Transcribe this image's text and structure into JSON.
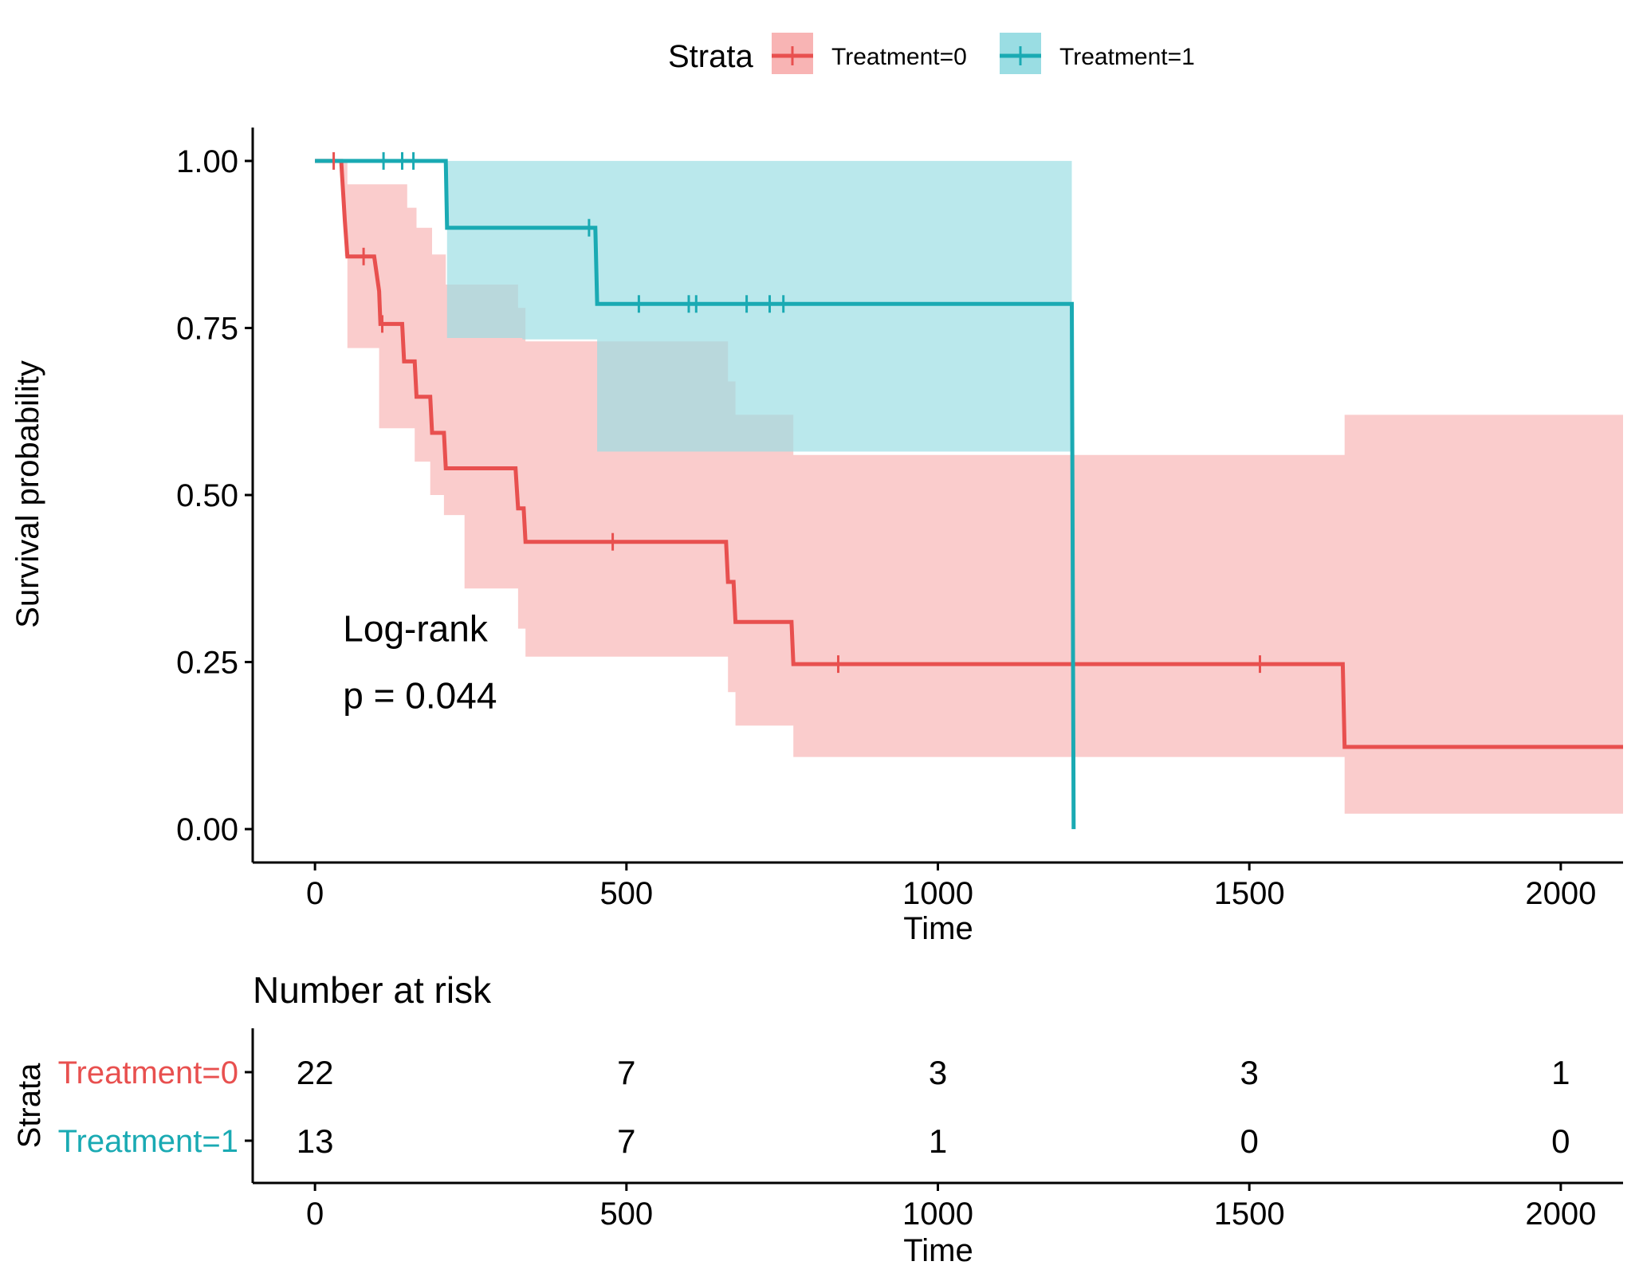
{
  "chart_data": {
    "type": "line",
    "subtype": "kaplan-meier",
    "legend": {
      "title": "Strata",
      "position": "top",
      "entries": [
        "Treatment=0",
        "Treatment=1"
      ]
    },
    "colors": {
      "treatment0": "#E8504F",
      "treatment1": "#1AAAB3",
      "band0": "#F8B4B4",
      "band1": "#9ADDE3"
    },
    "xlabel": "Time",
    "ylabel": "Survival probability",
    "xlim": [
      -100,
      2100
    ],
    "ylim": [
      -0.05,
      1.05
    ],
    "x_ticks": [
      0,
      500,
      1000,
      1500,
      2000
    ],
    "x_tick_labels": [
      "0",
      "500",
      "1000",
      "1500",
      "2000"
    ],
    "y_ticks": [
      0,
      0.25,
      0.5,
      0.75,
      1.0
    ],
    "y_tick_labels": [
      "0.00",
      "0.25",
      "0.50",
      "0.75",
      "1.00"
    ],
    "annotation": {
      "line1": "Log-rank",
      "line2": "p = 0.044",
      "x": 45,
      "y1": 0.3,
      "y2": 0.2
    },
    "series": [
      {
        "name": "Treatment=0",
        "steps": [
          [
            0,
            1.0
          ],
          [
            42,
            1.0
          ],
          [
            45,
            0.955
          ],
          [
            48,
            0.91
          ],
          [
            52,
            0.857
          ],
          [
            95,
            0.857
          ],
          [
            103,
            0.805
          ],
          [
            105,
            0.756
          ],
          [
            140,
            0.756
          ],
          [
            143,
            0.7
          ],
          [
            160,
            0.7
          ],
          [
            163,
            0.647
          ],
          [
            185,
            0.647
          ],
          [
            188,
            0.593
          ],
          [
            207,
            0.593
          ],
          [
            210,
            0.54
          ],
          [
            322,
            0.54
          ],
          [
            326,
            0.48
          ],
          [
            335,
            0.48
          ],
          [
            338,
            0.43
          ],
          [
            660,
            0.43
          ],
          [
            663,
            0.37
          ],
          [
            672,
            0.37
          ],
          [
            675,
            0.31
          ],
          [
            765,
            0.31
          ],
          [
            768,
            0.247
          ],
          [
            1650,
            0.247
          ],
          [
            1653,
            0.123
          ],
          [
            2100,
            0.123
          ]
        ],
        "censor_times": [
          [
            30,
            1.0
          ],
          [
            78,
            0.857
          ],
          [
            108,
            0.756
          ],
          [
            478,
            0.43
          ],
          [
            840,
            0.247
          ],
          [
            1517,
            0.247
          ]
        ],
        "ci_band": [
          [
            42,
            1.0,
            0.955
          ],
          [
            45,
            1.0,
            0.91
          ],
          [
            48,
            1.0,
            0.857
          ],
          [
            52,
            0.965,
            0.72
          ],
          [
            103,
            0.965,
            0.6
          ],
          [
            145,
            0.965,
            0.6
          ],
          [
            148,
            0.93,
            0.6
          ],
          [
            160,
            0.93,
            0.55
          ],
          [
            163,
            0.9,
            0.55
          ],
          [
            185,
            0.9,
            0.5
          ],
          [
            188,
            0.86,
            0.5
          ],
          [
            207,
            0.86,
            0.47
          ],
          [
            210,
            0.815,
            0.47
          ],
          [
            240,
            0.815,
            0.36
          ],
          [
            322,
            0.815,
            0.36
          ],
          [
            326,
            0.78,
            0.3
          ],
          [
            338,
            0.73,
            0.258
          ],
          [
            660,
            0.73,
            0.258
          ],
          [
            663,
            0.67,
            0.205
          ],
          [
            675,
            0.62,
            0.155
          ],
          [
            768,
            0.56,
            0.108
          ],
          [
            1650,
            0.56,
            0.108
          ],
          [
            1653,
            0.62,
            0.023
          ],
          [
            2100,
            0.62,
            0.023
          ]
        ]
      },
      {
        "name": "Treatment=1",
        "steps": [
          [
            0,
            1.0
          ],
          [
            210,
            1.0
          ],
          [
            212,
            0.9
          ],
          [
            450,
            0.9
          ],
          [
            453,
            0.786
          ],
          [
            1215,
            0.786
          ],
          [
            1218,
            0.0
          ]
        ],
        "censor_times": [
          [
            110,
            1.0
          ],
          [
            140,
            1.0
          ],
          [
            158,
            1.0
          ],
          [
            440,
            0.9
          ],
          [
            520,
            0.786
          ],
          [
            600,
            0.786
          ],
          [
            612,
            0.786
          ],
          [
            693,
            0.786
          ],
          [
            730,
            0.786
          ],
          [
            752,
            0.786
          ]
        ],
        "ci_band": [
          [
            210,
            1.0,
            1.0
          ],
          [
            212,
            1.0,
            0.735
          ],
          [
            330,
            1.0,
            0.735
          ],
          [
            333,
            1.0,
            0.733
          ],
          [
            450,
            1.0,
            0.733
          ],
          [
            453,
            1.0,
            0.565
          ],
          [
            1215,
            1.0,
            0.565
          ]
        ]
      }
    ],
    "risk_table": {
      "title": "Number at risk",
      "strata_axis_label": "Strata",
      "xlabel": "Time",
      "times": [
        0,
        500,
        1000,
        1500,
        2000
      ],
      "rows": [
        {
          "label": "Treatment=0",
          "counts": [
            "22",
            "7",
            "3",
            "3",
            "1"
          ]
        },
        {
          "label": "Treatment=1",
          "counts": [
            "13",
            "7",
            "1",
            "0",
            "0"
          ]
        }
      ]
    }
  }
}
